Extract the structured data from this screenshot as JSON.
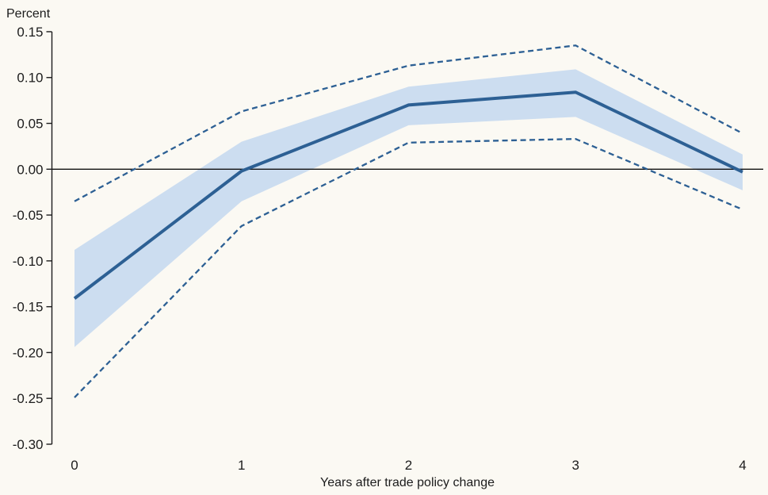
{
  "page": {
    "background_color": "#fbf9f3"
  },
  "chart_data": {
    "type": "line",
    "title": "",
    "ylabel": "Percent",
    "xlabel": "Years after trade policy change",
    "x": [
      0,
      1,
      2,
      3,
      4
    ],
    "x_tick_labels": [
      "0",
      "1",
      "2",
      "3",
      "4"
    ],
    "y_ticks": [
      0.15,
      0.1,
      0.05,
      0.0,
      -0.05,
      -0.1,
      -0.15,
      -0.2,
      -0.25,
      -0.3
    ],
    "y_tick_labels": [
      "0.15",
      "0.10",
      "0.05",
      "0.00",
      "-0.05",
      "-0.10",
      "-0.15",
      "-0.20",
      "-0.25",
      "-0.30"
    ],
    "ylim": [
      -0.3,
      0.15
    ],
    "xlim": [
      0,
      4
    ],
    "grid": false,
    "legend_position": "none",
    "zero_line": true,
    "series": [
      {
        "name": "point-estimate",
        "style": "solid",
        "values": [
          -0.141,
          -0.002,
          0.07,
          0.084,
          -0.003
        ]
      },
      {
        "name": "inner-band-upper",
        "style": "band-edge",
        "values": [
          -0.088,
          0.03,
          0.09,
          0.109,
          0.016
        ]
      },
      {
        "name": "inner-band-lower",
        "style": "band-edge",
        "values": [
          -0.194,
          -0.035,
          0.048,
          0.057,
          -0.023
        ]
      },
      {
        "name": "outer-bound-upper",
        "style": "dashed",
        "values": [
          -0.035,
          0.063,
          0.113,
          0.135,
          0.039
        ]
      },
      {
        "name": "outer-bound-lower",
        "style": "dashed",
        "values": [
          -0.249,
          -0.062,
          0.029,
          0.033,
          -0.044
        ]
      }
    ],
    "colors": {
      "line": "#2d6094",
      "band_fill": "#ccddf0",
      "axis": "#1c1c1c",
      "zero_line": "#111111"
    }
  }
}
